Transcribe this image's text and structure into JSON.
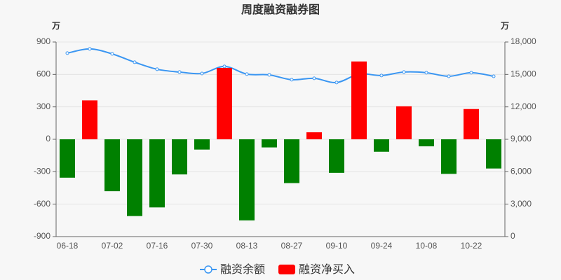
{
  "chart_data": {
    "type": "bar-line",
    "title": "周度融资融券图",
    "y_unit": "万",
    "y2_unit": "万",
    "categories": [
      "06-18",
      null,
      "07-02",
      null,
      "07-16",
      null,
      "07-30",
      null,
      "08-13",
      null,
      "08-27",
      null,
      "09-10",
      null,
      "09-24",
      null,
      "10-08",
      null,
      "10-22",
      null
    ],
    "series": [
      {
        "name": "融资余额",
        "type": "line",
        "axis": "y2",
        "color": "#3a96f2",
        "values": [
          16970,
          17360,
          16900,
          16130,
          15480,
          15220,
          15090,
          15740,
          15030,
          14960,
          14510,
          14640,
          14250,
          15030,
          14900,
          15220,
          15160,
          14830,
          15160,
          14830
        ]
      },
      {
        "name": "融资净买入",
        "type": "bar",
        "axis": "y",
        "color": "#ff0000",
        "negative_color": "#008000",
        "values": [
          -355,
          360,
          -480,
          -710,
          -630,
          -325,
          -95,
          660,
          -750,
          -75,
          -405,
          65,
          -310,
          720,
          -115,
          305,
          -65,
          -320,
          280,
          -270
        ]
      }
    ],
    "ylim": [
      -900,
      900
    ],
    "yticks": [
      -900,
      -600,
      -300,
      0,
      300,
      600,
      900
    ],
    "y2lim": [
      0,
      18000
    ],
    "y2ticks": [
      0,
      {
        "value": 3000,
        "label": "3,000"
      },
      {
        "value": 6000,
        "label": "6,000"
      },
      {
        "value": 9000,
        "label": "9,000"
      },
      {
        "value": 12000,
        "label": "12,000"
      },
      {
        "value": 15000,
        "label": "15,000"
      },
      {
        "value": 18000,
        "label": "18,000"
      }
    ]
  }
}
